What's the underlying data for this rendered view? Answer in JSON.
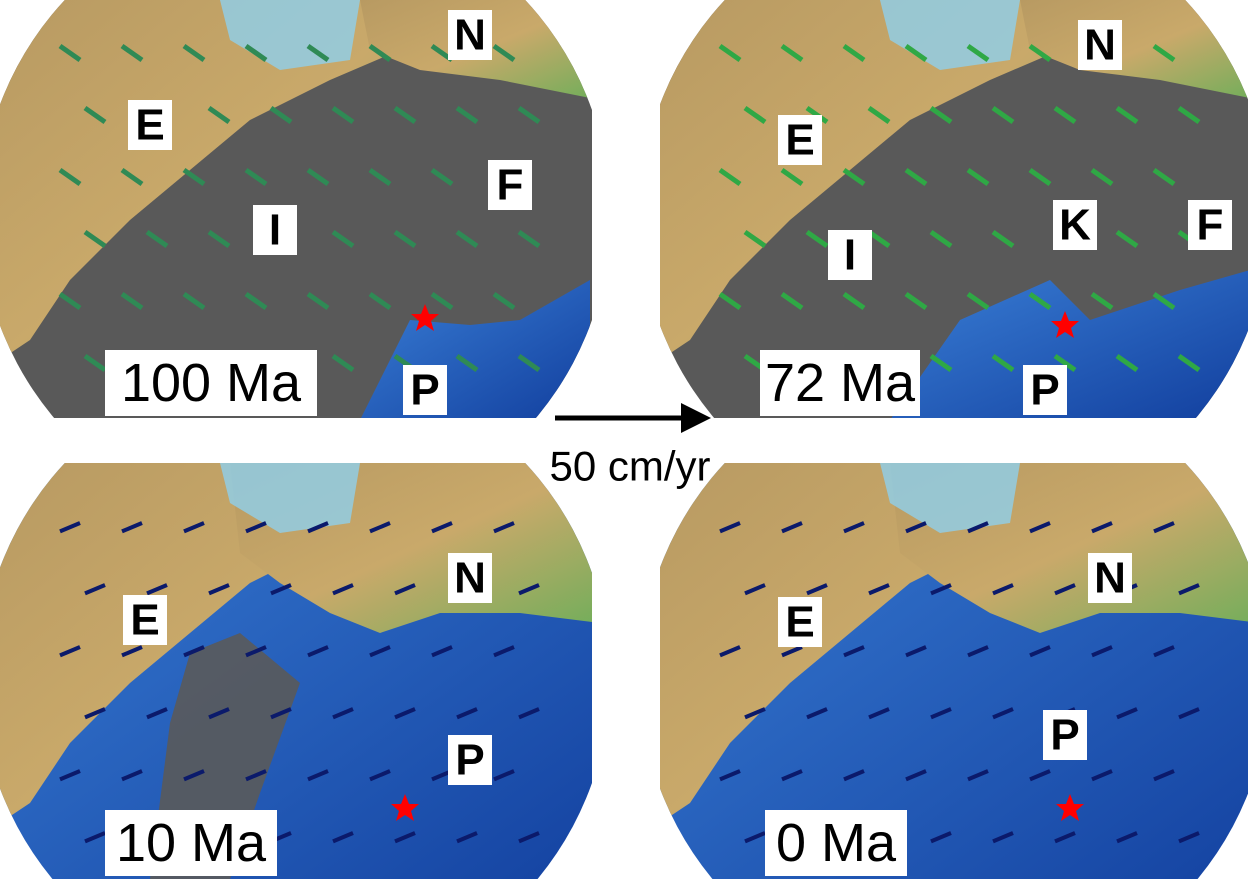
{
  "panels": [
    {
      "age": "100 Ma",
      "plates": [
        "E",
        "N",
        "I",
        "F",
        "P"
      ]
    },
    {
      "age": "72 Ma",
      "plates": [
        "E",
        "N",
        "I",
        "K",
        "F",
        "P"
      ]
    },
    {
      "age": "10 Ma",
      "plates": [
        "E",
        "N",
        "P"
      ]
    },
    {
      "age": "0 Ma",
      "plates": [
        "E",
        "N",
        "P"
      ]
    }
  ],
  "scale": {
    "label": "50 cm/yr"
  }
}
